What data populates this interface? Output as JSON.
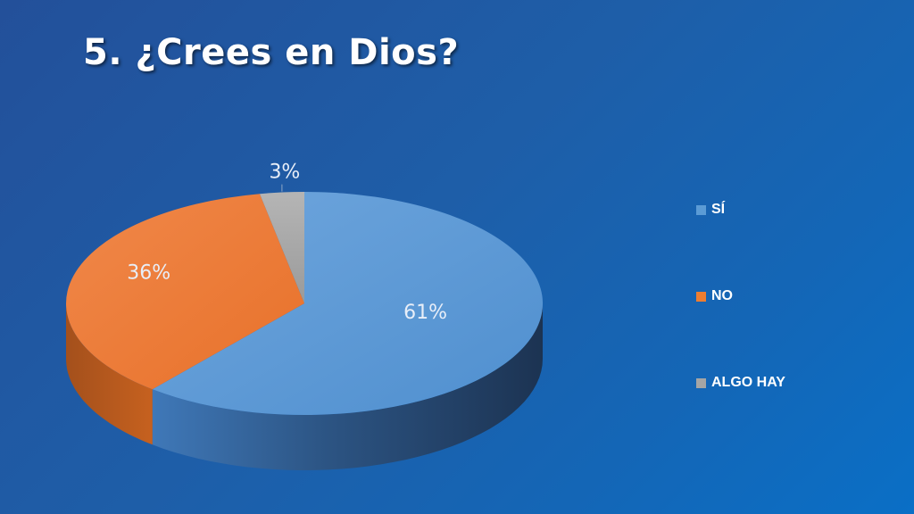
{
  "slide": {
    "title": "5. ¿Crees en Dios?"
  },
  "chart_data": {
    "type": "pie",
    "title": "5. ¿Crees en Dios?",
    "categories": [
      "SÍ",
      "NO",
      "ALGO HAY"
    ],
    "values": [
      61,
      36,
      3
    ],
    "value_labels": [
      "61%",
      "36%",
      "3%"
    ],
    "colors": [
      "#5b9bd5",
      "#ed7d31",
      "#a5a5a5"
    ],
    "style": "3d",
    "legend_position": "right"
  }
}
